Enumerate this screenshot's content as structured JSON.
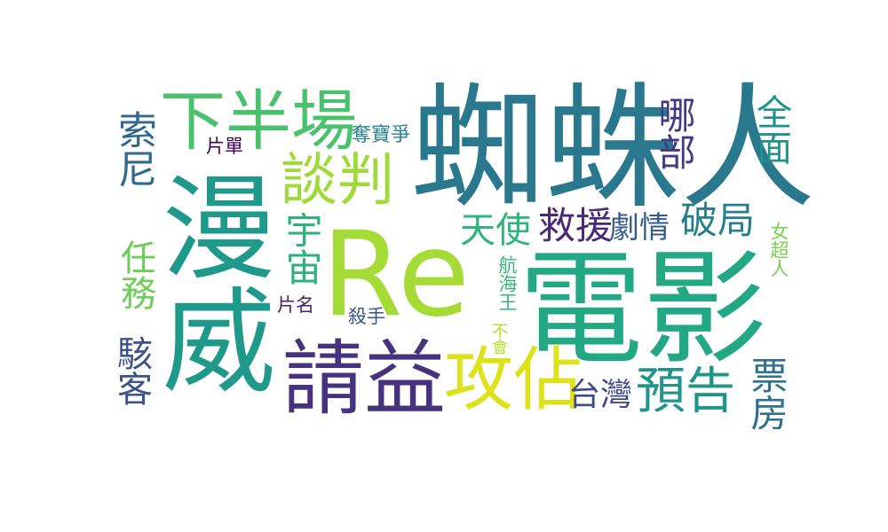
{
  "words": [
    {
      "text": "Re",
      "color": "#a5db36",
      "orientation": "horizontal"
    },
    {
      "text": "蜘蛛人",
      "color": "#2a788e",
      "orientation": "horizontal"
    },
    {
      "text": "電影",
      "color": "#22a884",
      "orientation": "horizontal"
    },
    {
      "text": "漫威",
      "color": "#1f9a8a",
      "orientation": "vertical"
    },
    {
      "text": "請益",
      "color": "#46327e",
      "orientation": "horizontal"
    },
    {
      "text": "下半場",
      "color": "#4ac16d",
      "orientation": "horizontal"
    },
    {
      "text": "攻佔",
      "color": "#dde318",
      "orientation": "horizontal"
    },
    {
      "text": "談判",
      "color": "#a0da39",
      "orientation": "horizontal"
    },
    {
      "text": "預告",
      "color": "#1f968b",
      "orientation": "horizontal"
    },
    {
      "text": "破局",
      "color": "#277f8e",
      "orientation": "horizontal"
    },
    {
      "text": "救援",
      "color": "#482878",
      "orientation": "horizontal"
    },
    {
      "text": "劇情",
      "color": "#365c8d",
      "orientation": "horizontal"
    },
    {
      "text": "天使",
      "color": "#2fb47c",
      "orientation": "horizontal"
    },
    {
      "text": "宇宙",
      "color": "#2db27d",
      "orientation": "vertical"
    },
    {
      "text": "台灣",
      "color": "#3e4989",
      "orientation": "horizontal"
    },
    {
      "text": "索尼",
      "color": "#31688e",
      "orientation": "vertical"
    },
    {
      "text": "任務",
      "color": "#6ece58",
      "orientation": "vertical"
    },
    {
      "text": "駭客",
      "color": "#3b528b",
      "orientation": "vertical"
    },
    {
      "text": "哪部",
      "color": "#443983",
      "orientation": "vertical"
    },
    {
      "text": "全面",
      "color": "#21918c",
      "orientation": "vertical"
    },
    {
      "text": "票房",
      "color": "#2c728e",
      "orientation": "vertical"
    },
    {
      "text": "奪寶爭",
      "color": "#26828e",
      "orientation": "horizontal"
    },
    {
      "text": "片單",
      "color": "#440154",
      "orientation": "horizontal"
    },
    {
      "text": "片名",
      "color": "#481f70",
      "orientation": "horizontal"
    },
    {
      "text": "殺手",
      "color": "#3a548c",
      "orientation": "horizontal"
    },
    {
      "text": "航海王",
      "color": "#35b779",
      "orientation": "vertical"
    },
    {
      "text": "女超人",
      "color": "#7ad151",
      "orientation": "vertical"
    },
    {
      "text": "不會",
      "color": "#b5de2b",
      "orientation": "vertical"
    }
  ]
}
